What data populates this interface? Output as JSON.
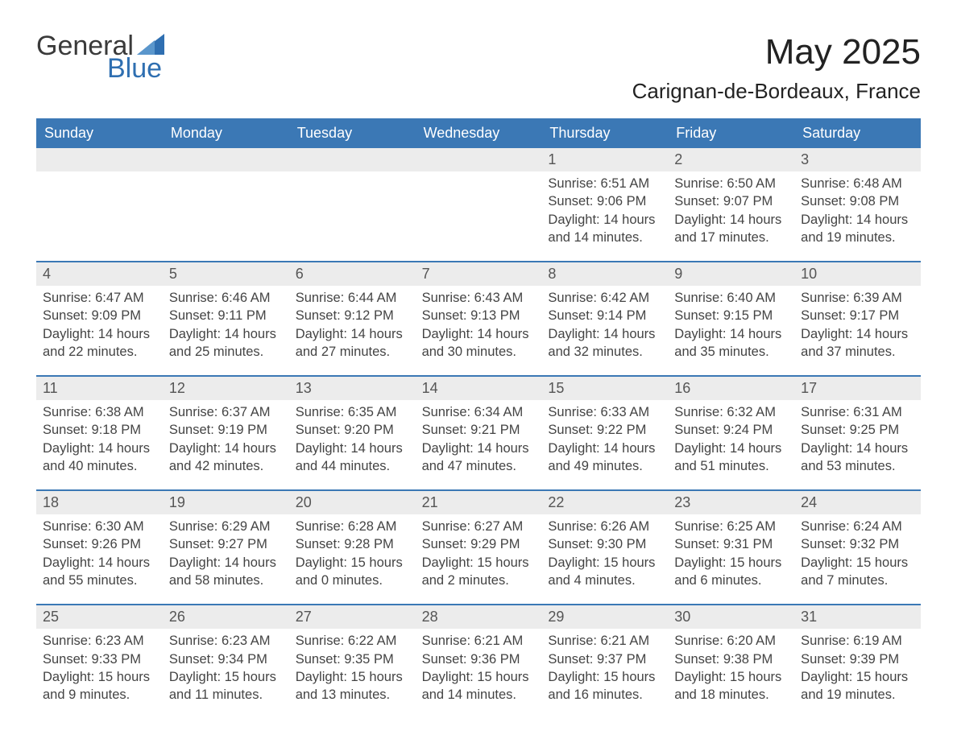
{
  "logo": {
    "word1": "General",
    "word2": "Blue",
    "accent_color": "#2f6fb1"
  },
  "title": "May 2025",
  "location": "Carignan-de-Bordeaux, France",
  "header_bg": "#3b78b5",
  "header_fg": "#ffffff",
  "daynum_bg": "#ececec",
  "border_color": "#3b78b5",
  "dow": [
    "Sunday",
    "Monday",
    "Tuesday",
    "Wednesday",
    "Thursday",
    "Friday",
    "Saturday"
  ],
  "weeks": [
    [
      {
        "n": "",
        "sunrise": "",
        "sunset": "",
        "daylight": ""
      },
      {
        "n": "",
        "sunrise": "",
        "sunset": "",
        "daylight": ""
      },
      {
        "n": "",
        "sunrise": "",
        "sunset": "",
        "daylight": ""
      },
      {
        "n": "",
        "sunrise": "",
        "sunset": "",
        "daylight": ""
      },
      {
        "n": "1",
        "sunrise": "Sunrise: 6:51 AM",
        "sunset": "Sunset: 9:06 PM",
        "daylight": "Daylight: 14 hours and 14 minutes."
      },
      {
        "n": "2",
        "sunrise": "Sunrise: 6:50 AM",
        "sunset": "Sunset: 9:07 PM",
        "daylight": "Daylight: 14 hours and 17 minutes."
      },
      {
        "n": "3",
        "sunrise": "Sunrise: 6:48 AM",
        "sunset": "Sunset: 9:08 PM",
        "daylight": "Daylight: 14 hours and 19 minutes."
      }
    ],
    [
      {
        "n": "4",
        "sunrise": "Sunrise: 6:47 AM",
        "sunset": "Sunset: 9:09 PM",
        "daylight": "Daylight: 14 hours and 22 minutes."
      },
      {
        "n": "5",
        "sunrise": "Sunrise: 6:46 AM",
        "sunset": "Sunset: 9:11 PM",
        "daylight": "Daylight: 14 hours and 25 minutes."
      },
      {
        "n": "6",
        "sunrise": "Sunrise: 6:44 AM",
        "sunset": "Sunset: 9:12 PM",
        "daylight": "Daylight: 14 hours and 27 minutes."
      },
      {
        "n": "7",
        "sunrise": "Sunrise: 6:43 AM",
        "sunset": "Sunset: 9:13 PM",
        "daylight": "Daylight: 14 hours and 30 minutes."
      },
      {
        "n": "8",
        "sunrise": "Sunrise: 6:42 AM",
        "sunset": "Sunset: 9:14 PM",
        "daylight": "Daylight: 14 hours and 32 minutes."
      },
      {
        "n": "9",
        "sunrise": "Sunrise: 6:40 AM",
        "sunset": "Sunset: 9:15 PM",
        "daylight": "Daylight: 14 hours and 35 minutes."
      },
      {
        "n": "10",
        "sunrise": "Sunrise: 6:39 AM",
        "sunset": "Sunset: 9:17 PM",
        "daylight": "Daylight: 14 hours and 37 minutes."
      }
    ],
    [
      {
        "n": "11",
        "sunrise": "Sunrise: 6:38 AM",
        "sunset": "Sunset: 9:18 PM",
        "daylight": "Daylight: 14 hours and 40 minutes."
      },
      {
        "n": "12",
        "sunrise": "Sunrise: 6:37 AM",
        "sunset": "Sunset: 9:19 PM",
        "daylight": "Daylight: 14 hours and 42 minutes."
      },
      {
        "n": "13",
        "sunrise": "Sunrise: 6:35 AM",
        "sunset": "Sunset: 9:20 PM",
        "daylight": "Daylight: 14 hours and 44 minutes."
      },
      {
        "n": "14",
        "sunrise": "Sunrise: 6:34 AM",
        "sunset": "Sunset: 9:21 PM",
        "daylight": "Daylight: 14 hours and 47 minutes."
      },
      {
        "n": "15",
        "sunrise": "Sunrise: 6:33 AM",
        "sunset": "Sunset: 9:22 PM",
        "daylight": "Daylight: 14 hours and 49 minutes."
      },
      {
        "n": "16",
        "sunrise": "Sunrise: 6:32 AM",
        "sunset": "Sunset: 9:24 PM",
        "daylight": "Daylight: 14 hours and 51 minutes."
      },
      {
        "n": "17",
        "sunrise": "Sunrise: 6:31 AM",
        "sunset": "Sunset: 9:25 PM",
        "daylight": "Daylight: 14 hours and 53 minutes."
      }
    ],
    [
      {
        "n": "18",
        "sunrise": "Sunrise: 6:30 AM",
        "sunset": "Sunset: 9:26 PM",
        "daylight": "Daylight: 14 hours and 55 minutes."
      },
      {
        "n": "19",
        "sunrise": "Sunrise: 6:29 AM",
        "sunset": "Sunset: 9:27 PM",
        "daylight": "Daylight: 14 hours and 58 minutes."
      },
      {
        "n": "20",
        "sunrise": "Sunrise: 6:28 AM",
        "sunset": "Sunset: 9:28 PM",
        "daylight": "Daylight: 15 hours and 0 minutes."
      },
      {
        "n": "21",
        "sunrise": "Sunrise: 6:27 AM",
        "sunset": "Sunset: 9:29 PM",
        "daylight": "Daylight: 15 hours and 2 minutes."
      },
      {
        "n": "22",
        "sunrise": "Sunrise: 6:26 AM",
        "sunset": "Sunset: 9:30 PM",
        "daylight": "Daylight: 15 hours and 4 minutes."
      },
      {
        "n": "23",
        "sunrise": "Sunrise: 6:25 AM",
        "sunset": "Sunset: 9:31 PM",
        "daylight": "Daylight: 15 hours and 6 minutes."
      },
      {
        "n": "24",
        "sunrise": "Sunrise: 6:24 AM",
        "sunset": "Sunset: 9:32 PM",
        "daylight": "Daylight: 15 hours and 7 minutes."
      }
    ],
    [
      {
        "n": "25",
        "sunrise": "Sunrise: 6:23 AM",
        "sunset": "Sunset: 9:33 PM",
        "daylight": "Daylight: 15 hours and 9 minutes."
      },
      {
        "n": "26",
        "sunrise": "Sunrise: 6:23 AM",
        "sunset": "Sunset: 9:34 PM",
        "daylight": "Daylight: 15 hours and 11 minutes."
      },
      {
        "n": "27",
        "sunrise": "Sunrise: 6:22 AM",
        "sunset": "Sunset: 9:35 PM",
        "daylight": "Daylight: 15 hours and 13 minutes."
      },
      {
        "n": "28",
        "sunrise": "Sunrise: 6:21 AM",
        "sunset": "Sunset: 9:36 PM",
        "daylight": "Daylight: 15 hours and 14 minutes."
      },
      {
        "n": "29",
        "sunrise": "Sunrise: 6:21 AM",
        "sunset": "Sunset: 9:37 PM",
        "daylight": "Daylight: 15 hours and 16 minutes."
      },
      {
        "n": "30",
        "sunrise": "Sunrise: 6:20 AM",
        "sunset": "Sunset: 9:38 PM",
        "daylight": "Daylight: 15 hours and 18 minutes."
      },
      {
        "n": "31",
        "sunrise": "Sunrise: 6:19 AM",
        "sunset": "Sunset: 9:39 PM",
        "daylight": "Daylight: 15 hours and 19 minutes."
      }
    ]
  ]
}
